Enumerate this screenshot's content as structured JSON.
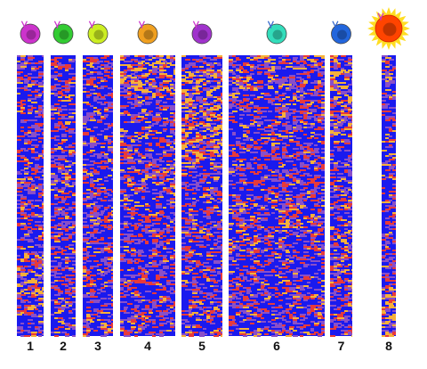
{
  "figure": {
    "panel_labels": [
      "1",
      "2",
      "3",
      "4",
      "5",
      "6",
      "7",
      "8"
    ],
    "cell_icons": [
      {
        "name": "cell-icon-1",
        "color": "#cc33cc",
        "receptor": "#cc33cc"
      },
      {
        "name": "cell-icon-2",
        "color": "#33cc33",
        "receptor": "#cc33cc"
      },
      {
        "name": "cell-icon-3",
        "color": "#ccee22",
        "receptor": "#cc33cc"
      },
      {
        "name": "cell-icon-4",
        "color": "#f0a020",
        "receptor": "#cc33cc"
      },
      {
        "name": "cell-icon-5",
        "color": "#a033cc",
        "receptor": "#cc33cc"
      },
      {
        "name": "cell-icon-6",
        "color": "#33ddbb",
        "receptor": "#3366cc"
      },
      {
        "name": "cell-icon-7",
        "color": "#2266dd",
        "receptor": "#3366cc"
      },
      {
        "name": "cell-icon-8",
        "color": "#ff4400",
        "receptor": "#cc33cc",
        "activated": true
      }
    ],
    "heatmap_palette": {
      "low": "#1a1aee",
      "mid": "#8a4fc8",
      "high": "#e83a3a",
      "peak": "#f5b03a"
    }
  }
}
